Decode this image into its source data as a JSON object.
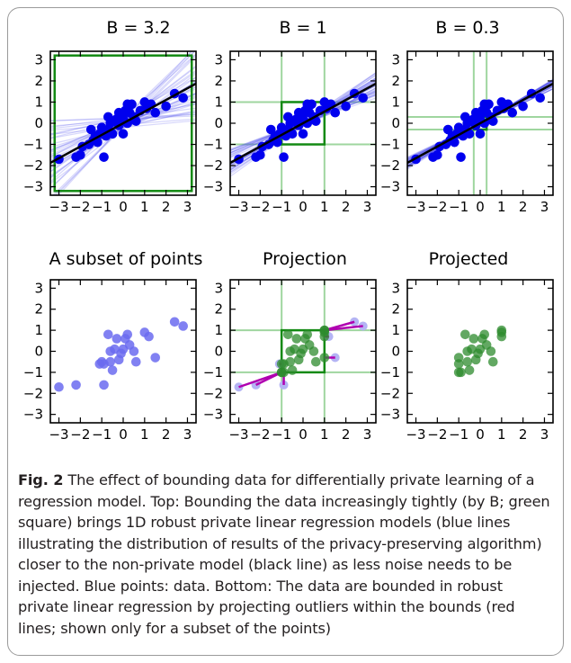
{
  "figure": {
    "caption": {
      "label": "Fig. 2",
      "text": " The effect of bounding data for differentially private learning of a regression model. Top: Bounding the data increasingly tightly (by B; green square) brings 1D robust private linear regression models (blue lines illustrating the distribution of results of the privacy-preserving algorithm) closer to the non-private model (black line) as less noise needs to be injected. Blue points: data. Bottom: The data are bounded in robust private linear regression by projecting outliers within the bounds (red lines; shown only for a subset of the points)"
    }
  },
  "chart_data": [
    {
      "type": "scatter",
      "title": "B = 3.2",
      "bound": 3.2,
      "xlim": [
        -3.4,
        3.4
      ],
      "ylim": [
        -3.4,
        3.4
      ],
      "xticks": [
        "−3",
        "−2",
        "−1",
        "0",
        "1",
        "2",
        "3"
      ],
      "yticks": [
        "3",
        "2",
        "1",
        "0",
        "−1",
        "−2",
        "−3"
      ],
      "points": [
        [
          -3.0,
          -1.7
        ],
        [
          -2.2,
          -1.6
        ],
        [
          -2.0,
          -1.5
        ],
        [
          -1.9,
          -1.1
        ],
        [
          -1.6,
          -1.0
        ],
        [
          -1.4,
          -0.8
        ],
        [
          -1.3,
          -0.6
        ],
        [
          -1.2,
          -0.9
        ],
        [
          -1.1,
          -0.5
        ],
        [
          -1.0,
          -0.5
        ],
        [
          -1.0,
          -0.2
        ],
        [
          -0.8,
          -0.6
        ],
        [
          -0.7,
          -0.3
        ],
        [
          -0.6,
          0.0
        ],
        [
          -0.5,
          0.1
        ],
        [
          -0.5,
          -0.5
        ],
        [
          -0.3,
          0.2
        ],
        [
          -0.2,
          -0.1
        ],
        [
          -0.2,
          0.5
        ],
        [
          -0.1,
          0.4
        ],
        [
          0.0,
          0.2
        ],
        [
          0.0,
          -0.5
        ],
        [
          0.1,
          0.6
        ],
        [
          0.2,
          0.0
        ],
        [
          0.3,
          0.5
        ],
        [
          0.4,
          0.9
        ],
        [
          0.5,
          0.3
        ],
        [
          0.6,
          0.1
        ],
        [
          0.8,
          0.6
        ],
        [
          1.0,
          1.0
        ],
        [
          1.1,
          0.7
        ],
        [
          1.3,
          0.9
        ],
        [
          1.5,
          0.5
        ],
        [
          2.0,
          0.8
        ],
        [
          2.4,
          1.4
        ],
        [
          2.8,
          1.2
        ],
        [
          -0.9,
          -1.6
        ],
        [
          -0.7,
          0.3
        ],
        [
          0.2,
          0.9
        ],
        [
          -1.5,
          -0.3
        ]
      ],
      "fit_line": {
        "slope": 0.55,
        "intercept": 0.0
      },
      "private_lines": {
        "count": 40,
        "slope_spread": 0.55,
        "intercept_spread": 0.3
      }
    },
    {
      "type": "scatter",
      "title": "B = 1",
      "bound": 1,
      "xlim": [
        -3.4,
        3.4
      ],
      "ylim": [
        -3.4,
        3.4
      ],
      "xticks": [
        "−3",
        "−2",
        "−1",
        "0",
        "1",
        "2",
        "3"
      ],
      "yticks": [
        "3",
        "2",
        "1",
        "0",
        "−1",
        "−2",
        "−3"
      ],
      "points": [
        [
          -3.0,
          -1.7
        ],
        [
          -2.2,
          -1.6
        ],
        [
          -2.0,
          -1.5
        ],
        [
          -1.9,
          -1.1
        ],
        [
          -1.6,
          -1.0
        ],
        [
          -1.4,
          -0.8
        ],
        [
          -1.3,
          -0.6
        ],
        [
          -1.2,
          -0.9
        ],
        [
          -1.1,
          -0.5
        ],
        [
          -1.0,
          -0.5
        ],
        [
          -1.0,
          -0.2
        ],
        [
          -0.8,
          -0.6
        ],
        [
          -0.7,
          -0.3
        ],
        [
          -0.6,
          0.0
        ],
        [
          -0.5,
          0.1
        ],
        [
          -0.5,
          -0.5
        ],
        [
          -0.3,
          0.2
        ],
        [
          -0.2,
          -0.1
        ],
        [
          -0.2,
          0.5
        ],
        [
          -0.1,
          0.4
        ],
        [
          0.0,
          0.2
        ],
        [
          0.0,
          -0.5
        ],
        [
          0.1,
          0.6
        ],
        [
          0.2,
          0.0
        ],
        [
          0.3,
          0.5
        ],
        [
          0.4,
          0.9
        ],
        [
          0.5,
          0.3
        ],
        [
          0.6,
          0.1
        ],
        [
          0.8,
          0.6
        ],
        [
          1.0,
          1.0
        ],
        [
          1.1,
          0.7
        ],
        [
          1.3,
          0.9
        ],
        [
          1.5,
          0.5
        ],
        [
          2.0,
          0.8
        ],
        [
          2.4,
          1.4
        ],
        [
          2.8,
          1.2
        ],
        [
          -0.9,
          -1.6
        ],
        [
          -0.7,
          0.3
        ],
        [
          0.2,
          0.9
        ],
        [
          -1.5,
          -0.3
        ]
      ],
      "fit_line": {
        "slope": 0.55,
        "intercept": 0.0
      },
      "private_lines": {
        "count": 40,
        "slope_spread": 0.2,
        "intercept_spread": 0.15
      }
    },
    {
      "type": "scatter",
      "title": "B = 0.3",
      "bound": 0.3,
      "xlim": [
        -3.4,
        3.4
      ],
      "ylim": [
        -3.4,
        3.4
      ],
      "xticks": [
        "−3",
        "−2",
        "−1",
        "0",
        "1",
        "2",
        "3"
      ],
      "yticks": [
        "3",
        "2",
        "1",
        "0",
        "−1",
        "−2",
        "−3"
      ],
      "points": [
        [
          -3.0,
          -1.7
        ],
        [
          -2.2,
          -1.6
        ],
        [
          -2.0,
          -1.5
        ],
        [
          -1.9,
          -1.1
        ],
        [
          -1.6,
          -1.0
        ],
        [
          -1.4,
          -0.8
        ],
        [
          -1.3,
          -0.6
        ],
        [
          -1.2,
          -0.9
        ],
        [
          -1.1,
          -0.5
        ],
        [
          -1.0,
          -0.5
        ],
        [
          -1.0,
          -0.2
        ],
        [
          -0.8,
          -0.6
        ],
        [
          -0.7,
          -0.3
        ],
        [
          -0.6,
          0.0
        ],
        [
          -0.5,
          0.1
        ],
        [
          -0.5,
          -0.5
        ],
        [
          -0.3,
          0.2
        ],
        [
          -0.2,
          -0.1
        ],
        [
          -0.2,
          0.5
        ],
        [
          -0.1,
          0.4
        ],
        [
          0.0,
          0.2
        ],
        [
          0.0,
          -0.5
        ],
        [
          0.1,
          0.6
        ],
        [
          0.2,
          0.0
        ],
        [
          0.3,
          0.5
        ],
        [
          0.4,
          0.9
        ],
        [
          0.5,
          0.3
        ],
        [
          0.6,
          0.1
        ],
        [
          0.8,
          0.6
        ],
        [
          1.0,
          1.0
        ],
        [
          1.1,
          0.7
        ],
        [
          1.3,
          0.9
        ],
        [
          1.5,
          0.5
        ],
        [
          2.0,
          0.8
        ],
        [
          2.4,
          1.4
        ],
        [
          2.8,
          1.2
        ],
        [
          -0.9,
          -1.6
        ],
        [
          -0.7,
          0.3
        ],
        [
          0.2,
          0.9
        ],
        [
          -1.5,
          -0.3
        ]
      ],
      "fit_line": {
        "slope": 0.55,
        "intercept": 0.0
      },
      "private_lines": {
        "count": 40,
        "slope_spread": 0.08,
        "intercept_spread": 0.05
      }
    },
    {
      "type": "scatter",
      "title": "A subset of points",
      "xlim": [
        -3.4,
        3.4
      ],
      "ylim": [
        -3.4,
        3.4
      ],
      "xticks": [
        "−3",
        "−2",
        "−1",
        "0",
        "1",
        "2",
        "3"
      ],
      "yticks": [
        "3",
        "2",
        "1",
        "0",
        "−1",
        "−2",
        "−3"
      ],
      "points": [
        [
          -3.0,
          -1.7
        ],
        [
          -2.2,
          -1.6
        ],
        [
          -1.0,
          -0.5
        ],
        [
          -1.1,
          -0.6
        ],
        [
          -0.9,
          -0.6
        ],
        [
          -0.6,
          0.0
        ],
        [
          -0.6,
          -0.5
        ],
        [
          -0.5,
          -0.9
        ],
        [
          -0.4,
          0.1
        ],
        [
          -0.3,
          0.6
        ],
        [
          -0.2,
          -0.4
        ],
        [
          -0.1,
          -0.1
        ],
        [
          0.0,
          0.1
        ],
        [
          0.1,
          0.6
        ],
        [
          0.2,
          0.8
        ],
        [
          0.3,
          0.3
        ],
        [
          0.5,
          0.0
        ],
        [
          0.6,
          -0.5
        ],
        [
          1.0,
          0.9
        ],
        [
          1.2,
          0.7
        ],
        [
          1.5,
          -0.3
        ],
        [
          2.4,
          1.4
        ],
        [
          2.8,
          1.2
        ],
        [
          -0.9,
          -1.6
        ],
        [
          -0.7,
          0.8
        ]
      ]
    },
    {
      "type": "scatter",
      "title": "Projection",
      "bound": 1,
      "xlim": [
        -3.4,
        3.4
      ],
      "ylim": [
        -3.4,
        3.4
      ],
      "xticks": [
        "−3",
        "−2",
        "−1",
        "0",
        "1",
        "2",
        "3"
      ],
      "yticks": [
        "3",
        "2",
        "1",
        "0",
        "−1",
        "−2",
        "−3"
      ],
      "original_points": [
        [
          -3.0,
          -1.7
        ],
        [
          -2.2,
          -1.6
        ],
        [
          -0.9,
          -1.6
        ],
        [
          2.4,
          1.4
        ],
        [
          2.8,
          1.2
        ],
        [
          1.5,
          -0.3
        ],
        [
          1.2,
          0.7
        ],
        [
          -1.1,
          -0.6
        ]
      ],
      "projected_points": [
        [
          -1.0,
          -1.0
        ],
        [
          -1.0,
          -1.0
        ],
        [
          -0.9,
          -1.0
        ],
        [
          1.0,
          1.0
        ],
        [
          1.0,
          1.0
        ],
        [
          1.0,
          -0.3
        ],
        [
          1.0,
          0.7
        ],
        [
          -1.0,
          -0.6
        ],
        [
          -0.6,
          0.0
        ],
        [
          -0.6,
          -0.5
        ],
        [
          -0.5,
          -0.9
        ],
        [
          -0.4,
          0.1
        ],
        [
          -0.3,
          0.6
        ],
        [
          -0.2,
          -0.4
        ],
        [
          -0.1,
          -0.1
        ],
        [
          0.0,
          0.1
        ],
        [
          0.1,
          0.6
        ],
        [
          0.2,
          0.8
        ],
        [
          0.3,
          0.3
        ],
        [
          0.5,
          0.0
        ],
        [
          0.6,
          -0.5
        ],
        [
          1.0,
          0.9
        ],
        [
          -0.7,
          0.8
        ],
        [
          -0.9,
          -0.6
        ]
      ],
      "projection_pairs": [
        [
          [
            -3.0,
            -1.7
          ],
          [
            -1.0,
            -1.0
          ]
        ],
        [
          [
            -2.2,
            -1.6
          ],
          [
            -1.0,
            -1.0
          ]
        ],
        [
          [
            -0.9,
            -1.6
          ],
          [
            -0.9,
            -1.0
          ]
        ],
        [
          [
            2.4,
            1.4
          ],
          [
            1.0,
            1.0
          ]
        ],
        [
          [
            2.8,
            1.2
          ],
          [
            1.0,
            1.0
          ]
        ],
        [
          [
            1.5,
            -0.3
          ],
          [
            1.0,
            -0.3
          ]
        ],
        [
          [
            1.2,
            0.7
          ],
          [
            1.0,
            0.7
          ]
        ],
        [
          [
            -1.1,
            -0.6
          ],
          [
            -1.0,
            -0.6
          ]
        ]
      ]
    },
    {
      "type": "scatter",
      "title": "Projected",
      "xlim": [
        -3.4,
        3.4
      ],
      "ylim": [
        -3.4,
        3.4
      ],
      "xticks": [
        "−3",
        "−2",
        "−1",
        "0",
        "1",
        "2",
        "3"
      ],
      "yticks": [
        "3",
        "2",
        "1",
        "0",
        "−1",
        "−2",
        "−3"
      ],
      "points": [
        [
          -1.0,
          -1.0
        ],
        [
          -1.0,
          -0.6
        ],
        [
          -0.9,
          -1.0
        ],
        [
          -1.0,
          -0.3
        ],
        [
          -0.6,
          0.0
        ],
        [
          -0.6,
          -0.5
        ],
        [
          -0.5,
          -0.9
        ],
        [
          -0.4,
          0.1
        ],
        [
          -0.3,
          0.6
        ],
        [
          -0.2,
          -0.4
        ],
        [
          -0.1,
          -0.1
        ],
        [
          0.0,
          0.1
        ],
        [
          0.1,
          0.6
        ],
        [
          0.2,
          0.8
        ],
        [
          0.3,
          0.3
        ],
        [
          0.5,
          0.0
        ],
        [
          0.6,
          -0.5
        ],
        [
          1.0,
          0.9
        ],
        [
          1.0,
          0.7
        ],
        [
          1.0,
          1.0
        ],
        [
          -0.7,
          0.8
        ]
      ]
    }
  ],
  "colors": {
    "data_points": "#0000ee",
    "data_points_light": "#6b6bf0",
    "projected_points": "#2e8b2e",
    "bound_box": "#138a13",
    "bound_lines": "#9fd69f",
    "private_lines": "#4a4aee",
    "fit_line": "#000000",
    "projection_lines": "#b000b0",
    "original_point_shadow": "#b4b4f4"
  }
}
